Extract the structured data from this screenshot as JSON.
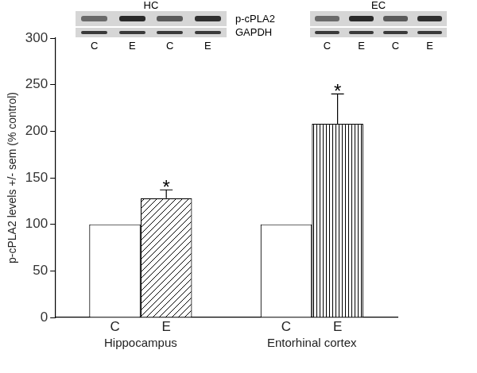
{
  "chart_data": {
    "type": "bar",
    "y_label": "p-cPLA2 levels +/- sem (% control)",
    "categories": [
      "Hippocampus",
      "Entorhinal cortex"
    ],
    "series": [
      {
        "name": "C",
        "color": "#ffffff",
        "values": [
          100,
          100
        ]
      },
      {
        "name": "E",
        "color": "#ffffff",
        "values": [
          128,
          208
        ],
        "errors": [
          9,
          32
        ],
        "annotations": [
          "*",
          "*"
        ]
      }
    ],
    "ylim": [
      0,
      300
    ],
    "yticks": [
      0,
      50,
      100,
      150,
      200,
      250,
      300
    ],
    "grid": false,
    "blot": {
      "panels": [
        {
          "title": "HC",
          "lanes": [
            "C",
            "E",
            "C",
            "E"
          ]
        },
        {
          "title": "EC",
          "lanes": [
            "C",
            "E",
            "C",
            "E"
          ]
        }
      ],
      "rows": [
        "p-cPLA2",
        "GAPDH"
      ]
    }
  }
}
